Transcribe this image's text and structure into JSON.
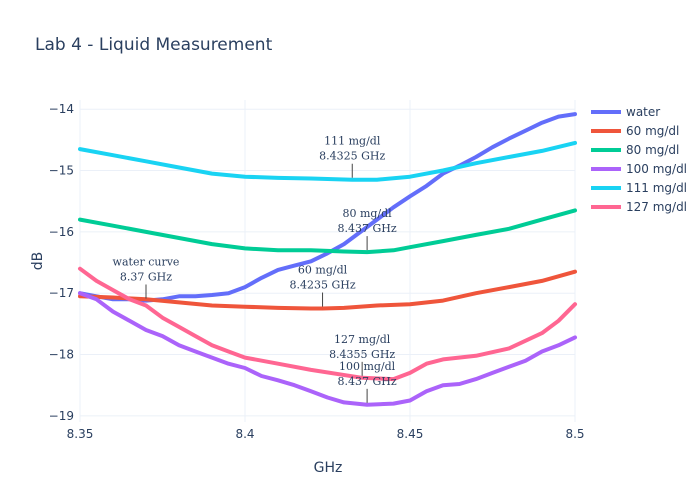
{
  "chart_data": {
    "type": "line",
    "title": "Lab 4 - Liquid Measurement",
    "xlabel": "GHz",
    "ylabel": "dB",
    "xlim": [
      8.35,
      8.5
    ],
    "ylim": [
      -19.1,
      -13.85
    ],
    "x_ticks": [
      8.35,
      8.4,
      8.45,
      8.5
    ],
    "x_tick_labels": [
      "8.35",
      "8.4",
      "8.45",
      "8.5"
    ],
    "y_ticks": [
      -14,
      -15,
      -16,
      -17,
      -18,
      -19
    ],
    "y_tick_labels": [
      "−14",
      "−15",
      "−16",
      "−17",
      "−18",
      "−19"
    ],
    "grid": true,
    "legend_position": "right",
    "series": [
      {
        "name": "water",
        "color": "#636efa",
        "points": [
          [
            8.35,
            -17.0
          ],
          [
            8.355,
            -17.05
          ],
          [
            8.36,
            -17.1
          ],
          [
            8.365,
            -17.1
          ],
          [
            8.37,
            -17.12
          ],
          [
            8.375,
            -17.1
          ],
          [
            8.38,
            -17.05
          ],
          [
            8.385,
            -17.05
          ],
          [
            8.39,
            -17.03
          ],
          [
            8.395,
            -17.0
          ],
          [
            8.4,
            -16.9
          ],
          [
            8.405,
            -16.75
          ],
          [
            8.41,
            -16.62
          ],
          [
            8.415,
            -16.55
          ],
          [
            8.42,
            -16.48
          ],
          [
            8.425,
            -16.35
          ],
          [
            8.43,
            -16.2
          ],
          [
            8.435,
            -16.0
          ],
          [
            8.44,
            -15.8
          ],
          [
            8.445,
            -15.6
          ],
          [
            8.45,
            -15.42
          ],
          [
            8.455,
            -15.25
          ],
          [
            8.46,
            -15.05
          ],
          [
            8.465,
            -14.92
          ],
          [
            8.47,
            -14.78
          ],
          [
            8.475,
            -14.62
          ],
          [
            8.48,
            -14.48
          ],
          [
            8.485,
            -14.35
          ],
          [
            8.49,
            -14.22
          ],
          [
            8.495,
            -14.12
          ],
          [
            8.5,
            -14.08
          ]
        ]
      },
      {
        "name": "60 mg/dl",
        "color": "#EF553B",
        "points": [
          [
            8.35,
            -17.05
          ],
          [
            8.36,
            -17.07
          ],
          [
            8.37,
            -17.1
          ],
          [
            8.38,
            -17.15
          ],
          [
            8.39,
            -17.2
          ],
          [
            8.4,
            -17.22
          ],
          [
            8.41,
            -17.24
          ],
          [
            8.42,
            -17.25
          ],
          [
            8.4235,
            -17.25
          ],
          [
            8.43,
            -17.24
          ],
          [
            8.44,
            -17.2
          ],
          [
            8.45,
            -17.18
          ],
          [
            8.46,
            -17.12
          ],
          [
            8.47,
            -17.0
          ],
          [
            8.48,
            -16.9
          ],
          [
            8.49,
            -16.8
          ],
          [
            8.5,
            -16.65
          ]
        ]
      },
      {
        "name": "80 mg/dl",
        "color": "#00cc96",
        "points": [
          [
            8.35,
            -15.8
          ],
          [
            8.36,
            -15.9
          ],
          [
            8.37,
            -16.0
          ],
          [
            8.38,
            -16.1
          ],
          [
            8.39,
            -16.2
          ],
          [
            8.4,
            -16.27
          ],
          [
            8.41,
            -16.3
          ],
          [
            8.42,
            -16.3
          ],
          [
            8.43,
            -16.32
          ],
          [
            8.437,
            -16.33
          ],
          [
            8.445,
            -16.3
          ],
          [
            8.45,
            -16.25
          ],
          [
            8.46,
            -16.15
          ],
          [
            8.47,
            -16.05
          ],
          [
            8.48,
            -15.95
          ],
          [
            8.49,
            -15.8
          ],
          [
            8.5,
            -15.65
          ]
        ]
      },
      {
        "name": "100 mg/dl",
        "color": "#ab63fa",
        "points": [
          [
            8.35,
            -17.0
          ],
          [
            8.355,
            -17.1
          ],
          [
            8.36,
            -17.3
          ],
          [
            8.365,
            -17.45
          ],
          [
            8.37,
            -17.6
          ],
          [
            8.375,
            -17.7
          ],
          [
            8.38,
            -17.85
          ],
          [
            8.385,
            -17.95
          ],
          [
            8.39,
            -18.05
          ],
          [
            8.395,
            -18.15
          ],
          [
            8.4,
            -18.22
          ],
          [
            8.405,
            -18.35
          ],
          [
            8.41,
            -18.42
          ],
          [
            8.415,
            -18.5
          ],
          [
            8.42,
            -18.6
          ],
          [
            8.425,
            -18.7
          ],
          [
            8.43,
            -18.78
          ],
          [
            8.437,
            -18.82
          ],
          [
            8.445,
            -18.8
          ],
          [
            8.45,
            -18.75
          ],
          [
            8.455,
            -18.6
          ],
          [
            8.46,
            -18.5
          ],
          [
            8.465,
            -18.48
          ],
          [
            8.47,
            -18.4
          ],
          [
            8.475,
            -18.3
          ],
          [
            8.48,
            -18.2
          ],
          [
            8.485,
            -18.1
          ],
          [
            8.49,
            -17.95
          ],
          [
            8.495,
            -17.85
          ],
          [
            8.5,
            -17.72
          ]
        ]
      },
      {
        "name": "111 mg/dl",
        "color": "#19d3f3",
        "points": [
          [
            8.35,
            -14.65
          ],
          [
            8.36,
            -14.75
          ],
          [
            8.37,
            -14.85
          ],
          [
            8.38,
            -14.95
          ],
          [
            8.39,
            -15.05
          ],
          [
            8.4,
            -15.1
          ],
          [
            8.41,
            -15.12
          ],
          [
            8.42,
            -15.13
          ],
          [
            8.4325,
            -15.15
          ],
          [
            8.44,
            -15.15
          ],
          [
            8.45,
            -15.1
          ],
          [
            8.46,
            -15.0
          ],
          [
            8.47,
            -14.88
          ],
          [
            8.48,
            -14.78
          ],
          [
            8.49,
            -14.68
          ],
          [
            8.5,
            -14.55
          ]
        ]
      },
      {
        "name": "127 mg/dl",
        "color": "#FF6692",
        "points": [
          [
            8.35,
            -16.6
          ],
          [
            8.355,
            -16.8
          ],
          [
            8.36,
            -16.95
          ],
          [
            8.365,
            -17.1
          ],
          [
            8.37,
            -17.2
          ],
          [
            8.375,
            -17.4
          ],
          [
            8.38,
            -17.55
          ],
          [
            8.385,
            -17.7
          ],
          [
            8.39,
            -17.85
          ],
          [
            8.395,
            -17.95
          ],
          [
            8.4,
            -18.05
          ],
          [
            8.41,
            -18.15
          ],
          [
            8.42,
            -18.25
          ],
          [
            8.4355,
            -18.38
          ],
          [
            8.445,
            -18.4
          ],
          [
            8.45,
            -18.3
          ],
          [
            8.455,
            -18.15
          ],
          [
            8.46,
            -18.08
          ],
          [
            8.47,
            -18.02
          ],
          [
            8.48,
            -17.9
          ],
          [
            8.49,
            -17.65
          ],
          [
            8.495,
            -17.45
          ],
          [
            8.5,
            -17.18
          ]
        ]
      }
    ],
    "annotations": [
      {
        "lines": [
          "111 mg/dl",
          "8.4325 GHz"
        ],
        "x": 8.4325,
        "y": -15.15
      },
      {
        "lines": [
          "80 mg/dl",
          "8.437 GHz"
        ],
        "x": 8.437,
        "y": -16.33
      },
      {
        "lines": [
          "water curve",
          "8.37 GHz"
        ],
        "x": 8.37,
        "y": -17.12
      },
      {
        "lines": [
          "60 mg/dl",
          "8.4235 GHz"
        ],
        "x": 8.4235,
        "y": -17.25
      },
      {
        "lines": [
          "127 mg/dl",
          "8.4355 GHz"
        ],
        "x": 8.4355,
        "y": -18.38
      },
      {
        "lines": [
          "100 mg/dl",
          "8.437 GHz"
        ],
        "x": 8.437,
        "y": -18.82
      }
    ]
  }
}
